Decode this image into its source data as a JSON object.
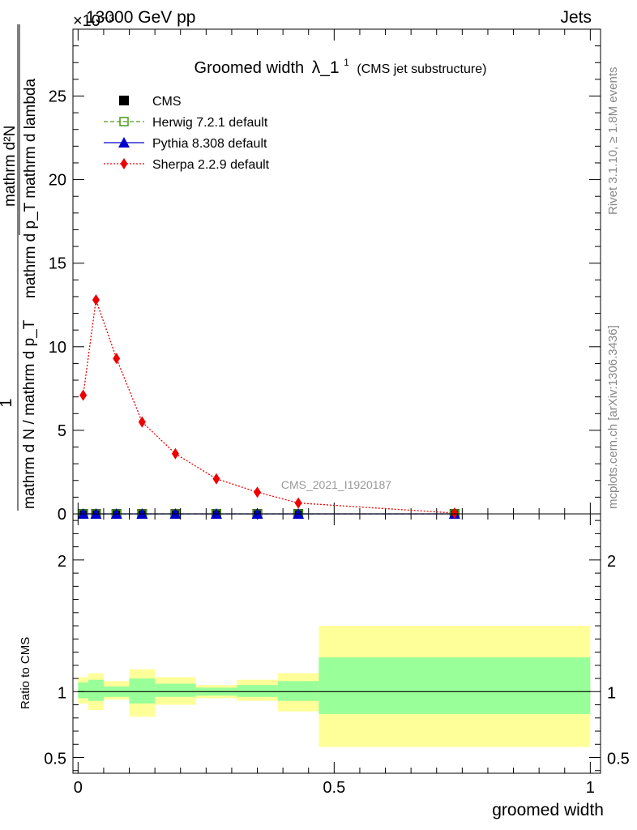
{
  "header": {
    "left": "13000 GeV pp",
    "right": "Jets",
    "exponent": "×10⁻³"
  },
  "side_labels": {
    "rivet": "Rivet 3.1.10, ≥ 1.8M events",
    "mcplots": "mcplots.cern.ch [arXiv:1306.3436]"
  },
  "watermark": "CMS_2021_I1920187",
  "chart_data": [
    {
      "type": "line",
      "title": "Groomed width",
      "title_symbol": "λ_1",
      "title_superscript": "1",
      "title_note": "(CMS jet substructure)",
      "ylabel_numerator": "1",
      "ylabel_denominator": "mathrm d N / mathrm d p_T",
      "ylabel_frac_num": "mathrm d²N",
      "ylabel_frac_den": "mathrm d p_T mathrm d lambda",
      "y_scale_note": "×10⁻³",
      "xlim": [
        -0.01,
        1.02
      ],
      "ylim": [
        0,
        29
      ],
      "yticks": [
        0,
        5,
        10,
        15,
        20,
        25
      ],
      "legend_position": "top-left",
      "series": [
        {
          "name": "CMS",
          "color": "#000000",
          "marker": "square-filled",
          "line": "none",
          "x": [
            0.01,
            0.035,
            0.075,
            0.125,
            0.19,
            0.27,
            0.35,
            0.43,
            0.735
          ],
          "y": [
            0,
            0,
            0,
            0,
            0,
            0,
            0,
            0,
            0
          ]
        },
        {
          "name": "Herwig 7.2.1 default",
          "color": "#4a9a1a",
          "marker": "square-open",
          "line": "dashed",
          "x": [
            0.01,
            0.035,
            0.075,
            0.125,
            0.19,
            0.27,
            0.35,
            0.43,
            0.735
          ],
          "y": [
            0,
            0,
            0,
            0,
            0,
            0,
            0,
            0,
            0
          ]
        },
        {
          "name": "Pythia 8.308 default",
          "color": "#0000cc",
          "marker": "triangle-filled",
          "line": "solid",
          "x": [
            0.01,
            0.035,
            0.075,
            0.125,
            0.19,
            0.27,
            0.35,
            0.43,
            0.735
          ],
          "y": [
            0,
            0,
            0,
            0,
            0,
            0,
            0,
            0,
            0
          ]
        },
        {
          "name": "Sherpa 2.2.9 default",
          "color": "#ee0000",
          "marker": "diamond-filled",
          "line": "dotted",
          "x": [
            0.01,
            0.035,
            0.075,
            0.125,
            0.19,
            0.27,
            0.35,
            0.43,
            0.735
          ],
          "y": [
            7.1,
            12.8,
            9.3,
            5.5,
            3.6,
            2.1,
            1.3,
            0.65,
            0.05
          ]
        }
      ]
    },
    {
      "type": "area",
      "ylabel": "Ratio to CMS",
      "xlabel": "groomed width",
      "xlim": [
        -0.01,
        1.02
      ],
      "ylim": [
        0.38,
        2.35
      ],
      "yticks": [
        0.5,
        1,
        2
      ],
      "ytick_labels": [
        "0.5",
        "1",
        "2"
      ],
      "xticks": [
        0,
        0.5,
        1
      ],
      "xtick_labels": [
        "0",
        "0.5",
        "1"
      ],
      "reference_line": 1,
      "bins": [
        {
          "x": [
            0.0,
            0.02
          ],
          "inner": [
            0.95,
            1.07
          ],
          "outer": [
            0.91,
            1.11
          ]
        },
        {
          "x": [
            0.02,
            0.05
          ],
          "inner": [
            0.93,
            1.09
          ],
          "outer": [
            0.86,
            1.14
          ]
        },
        {
          "x": [
            0.05,
            0.1
          ],
          "inner": [
            0.96,
            1.04
          ],
          "outer": [
            0.94,
            1.08
          ]
        },
        {
          "x": [
            0.1,
            0.15
          ],
          "inner": [
            0.91,
            1.1
          ],
          "outer": [
            0.81,
            1.17
          ]
        },
        {
          "x": [
            0.15,
            0.23
          ],
          "inner": [
            0.96,
            1.06
          ],
          "outer": [
            0.9,
            1.11
          ]
        },
        {
          "x": [
            0.23,
            0.31
          ],
          "inner": [
            0.97,
            1.03
          ],
          "outer": [
            0.95,
            1.05
          ]
        },
        {
          "x": [
            0.31,
            0.39
          ],
          "inner": [
            0.96,
            1.05
          ],
          "outer": [
            0.93,
            1.09
          ]
        },
        {
          "x": [
            0.39,
            0.47
          ],
          "inner": [
            0.93,
            1.08
          ],
          "outer": [
            0.85,
            1.14
          ]
        },
        {
          "x": [
            0.47,
            1.0
          ],
          "inner": [
            0.83,
            1.26
          ],
          "outer": [
            0.58,
            1.5
          ]
        }
      ],
      "colors": {
        "inner": "#99ff99",
        "outer": "#ffff99",
        "line": "#000000"
      }
    }
  ]
}
